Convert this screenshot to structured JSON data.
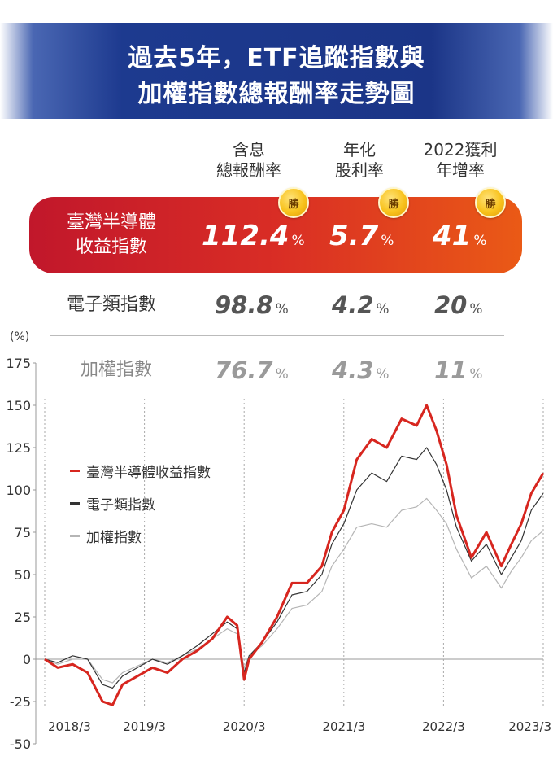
{
  "title": {
    "line1": "過去5年，ETF追蹤指數與",
    "line2": "加權指數總報酬率走勢圖"
  },
  "table": {
    "columns": [
      {
        "line1": "含息",
        "line2": "總報酬率"
      },
      {
        "line1": "年化",
        "line2": "股利率"
      },
      {
        "line1": "2022獲利",
        "line2": "年增率"
      }
    ],
    "badge": "勝",
    "rows": [
      {
        "name_line1": "臺灣半導體",
        "name_line2": "收益指數",
        "values": [
          "112.4",
          "5.7",
          "41"
        ],
        "unit": "%"
      },
      {
        "name_line1": "電子類指數",
        "name_line2": "",
        "values": [
          "98.8",
          "4.2",
          "20"
        ],
        "unit": "%"
      },
      {
        "name_line1": "加權指數",
        "name_line2": "",
        "values": [
          "76.7",
          "4.3",
          "11"
        ],
        "unit": "%"
      }
    ]
  },
  "colors": {
    "semiconductor": "#d7261f",
    "electronics": "#333333",
    "taiex": "#b5b5b5"
  },
  "chart_data": {
    "type": "line",
    "ylabel": "(%)",
    "ylim": [
      -50,
      175
    ],
    "yticks": [
      175,
      150,
      125,
      100,
      75,
      50,
      25,
      0,
      -25,
      -50
    ],
    "x_labels": [
      "2018/3",
      "2019/3",
      "2020/3",
      "2021/3",
      "2022/3",
      "2023/3"
    ],
    "x": [
      2018.17,
      2018.3,
      2018.45,
      2018.6,
      2018.75,
      2018.85,
      2018.95,
      2019.1,
      2019.25,
      2019.4,
      2019.55,
      2019.7,
      2019.85,
      2020.0,
      2020.1,
      2020.17,
      2020.22,
      2020.35,
      2020.5,
      2020.65,
      2020.8,
      2020.95,
      2021.05,
      2021.17,
      2021.3,
      2021.45,
      2021.6,
      2021.75,
      2021.9,
      2022.0,
      2022.1,
      2022.2,
      2022.3,
      2022.45,
      2022.6,
      2022.75,
      2022.85,
      2022.95,
      2023.05,
      2023.17
    ],
    "series": [
      {
        "name": "臺灣半導體收益指數",
        "values": [
          0,
          -5,
          -3,
          -8,
          -25,
          -27,
          -15,
          -10,
          -5,
          -8,
          0,
          5,
          12,
          25,
          20,
          -12,
          0,
          10,
          25,
          45,
          45,
          55,
          75,
          88,
          118,
          130,
          125,
          142,
          138,
          150,
          135,
          115,
          85,
          60,
          75,
          55,
          68,
          80,
          98,
          110
        ]
      },
      {
        "name": "電子類指數",
        "values": [
          0,
          -2,
          2,
          0,
          -15,
          -17,
          -10,
          -5,
          0,
          -3,
          2,
          8,
          15,
          22,
          18,
          -8,
          2,
          10,
          22,
          38,
          40,
          50,
          68,
          80,
          100,
          110,
          105,
          120,
          118,
          125,
          115,
          100,
          78,
          58,
          68,
          50,
          60,
          70,
          88,
          98
        ]
      },
      {
        "name": "加權指數",
        "values": [
          0,
          -3,
          0,
          0,
          -12,
          -14,
          -8,
          -4,
          0,
          -2,
          2,
          6,
          12,
          18,
          15,
          -5,
          2,
          8,
          18,
          30,
          32,
          40,
          55,
          65,
          78,
          80,
          78,
          88,
          90,
          95,
          88,
          80,
          65,
          48,
          55,
          42,
          52,
          60,
          70,
          76
        ]
      }
    ]
  }
}
